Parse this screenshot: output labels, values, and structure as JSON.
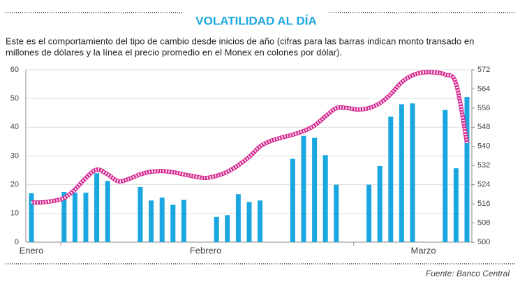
{
  "chart_data": {
    "type": "bar_line",
    "title": "VOLATILIDAD AL DÍA",
    "subtitle": [
      "Este es el comportamiento del tipo de cambio desde inicios de año (cifras para las barras indican monto transado en",
      "millones de dólares y la línea el precio promedio en el Monex en colones por dólar)."
    ],
    "source": "Fuente: Banco Central",
    "categories": [
      "Enero",
      null,
      null,
      null,
      null,
      null,
      null,
      null,
      null,
      null,
      null,
      null,
      null,
      null,
      null,
      null,
      "Febrero",
      null,
      null,
      null,
      null,
      null,
      null,
      null,
      null,
      null,
      null,
      null,
      null,
      null,
      null,
      null,
      null,
      null,
      null,
      null,
      "Marzo",
      null,
      null,
      null,
      null
    ],
    "series": [
      {
        "name": "Monto transado",
        "color": "#1aa7e0",
        "values": [
          17,
          null,
          null,
          17.5,
          17.2,
          17.2,
          24,
          21.3,
          null,
          null,
          19.2,
          14.5,
          15.5,
          13,
          14.7,
          null,
          null,
          8.8,
          9.4,
          16.7,
          14,
          14.5,
          null,
          null,
          29,
          37,
          36.3,
          30.3,
          20,
          null,
          null,
          20,
          26.5,
          43.7,
          48,
          48.3,
          null,
          null,
          46,
          25.7,
          50.5
        ]
      },
      {
        "name": "Precio promedio",
        "color": "#d6288f",
        "axis": "y2",
        "values": [
          516.6,
          516.6,
          517.2,
          518.4,
          522,
          526.8,
          530.3,
          528.3,
          525.4,
          526.5,
          528.3,
          529.4,
          529.7,
          529.2,
          528.3,
          527.4,
          526.8,
          527.7,
          529.4,
          532.1,
          535.6,
          540,
          542.3,
          543.7,
          544.9,
          546.4,
          548.7,
          552.5,
          556,
          556,
          555.4,
          556,
          558,
          561.8,
          566.8,
          569.7,
          570.9,
          570.9,
          570,
          566.2,
          541.4
        ]
      }
    ],
    "ylim": [
      0,
      60
    ],
    "yticks": [
      0,
      10,
      20,
      30,
      40,
      50,
      60
    ],
    "y2lim": [
      500,
      572
    ],
    "y2ticks": [
      500,
      508,
      516,
      524,
      532,
      540,
      548,
      556,
      564,
      572
    ],
    "grid": true
  }
}
